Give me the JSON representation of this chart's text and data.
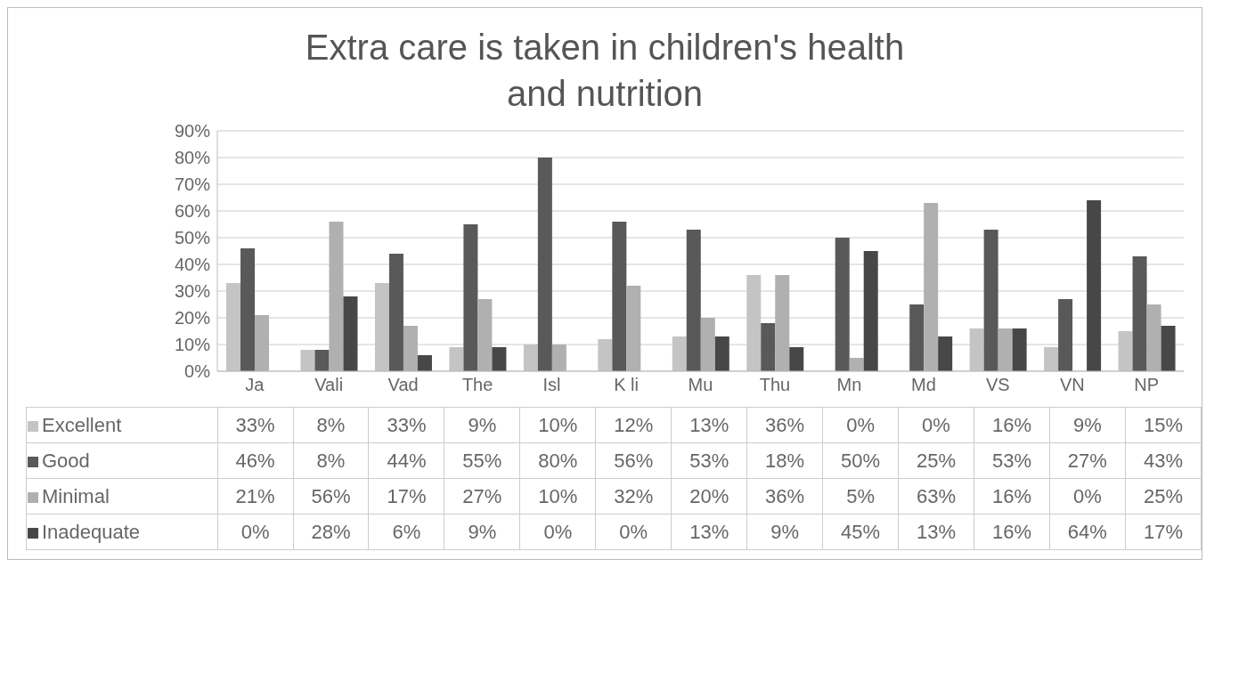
{
  "chart_data": {
    "type": "bar",
    "title": "Extra care is taken in children's health and nutrition",
    "categories": [
      "Ja",
      "Vali",
      "Vad",
      "The",
      "Isl",
      "K li",
      "Mu",
      "Thu",
      "Mn",
      "Md",
      "VS",
      "VN",
      "NP"
    ],
    "series": [
      {
        "name": "Excellent",
        "color": "#c4c4c4",
        "values": [
          33,
          8,
          33,
          9,
          10,
          12,
          13,
          36,
          0,
          0,
          16,
          9,
          15
        ],
        "value_labels": [
          "33%",
          "8%",
          "33%",
          "9%",
          "10%",
          "12%",
          "13%",
          "36%",
          "0%",
          "0%",
          "16%",
          "9%",
          "15%"
        ]
      },
      {
        "name": "Good",
        "color": "#595959",
        "values": [
          46,
          8,
          44,
          55,
          80,
          56,
          53,
          18,
          50,
          25,
          53,
          27,
          43
        ],
        "value_labels": [
          "46%",
          "8%",
          "44%",
          "55%",
          "80%",
          "56%",
          "53%",
          "18%",
          "50%",
          "25%",
          "53%",
          "27%",
          "43%"
        ]
      },
      {
        "name": "Minimal",
        "color": "#b0b0b0",
        "values": [
          21,
          56,
          17,
          27,
          10,
          32,
          20,
          36,
          5,
          63,
          16,
          0,
          25
        ],
        "value_labels": [
          "21%",
          "56%",
          "17%",
          "27%",
          "10%",
          "32%",
          "20%",
          "36%",
          "5%",
          "63%",
          "16%",
          "0%",
          "25%"
        ]
      },
      {
        "name": "Inadequate",
        "color": "#474747",
        "values": [
          0,
          28,
          6,
          9,
          0,
          0,
          13,
          9,
          45,
          13,
          16,
          64,
          17
        ],
        "value_labels": [
          "0%",
          "28%",
          "6%",
          "9%",
          "0%",
          "0%",
          "13%",
          "9%",
          "45%",
          "13%",
          "16%",
          "64%",
          "17%"
        ]
      }
    ],
    "ylim": [
      0,
      90
    ],
    "yticks": [
      {
        "value": 0,
        "label": "0%"
      },
      {
        "value": 10,
        "label": "10%"
      },
      {
        "value": 20,
        "label": "20%"
      },
      {
        "value": 30,
        "label": "30%"
      },
      {
        "value": 40,
        "label": "40%"
      },
      {
        "value": 50,
        "label": "50%"
      },
      {
        "value": 60,
        "label": "60%"
      },
      {
        "value": 70,
        "label": "70%"
      },
      {
        "value": 80,
        "label": "80%"
      },
      {
        "value": 90,
        "label": "90%"
      }
    ],
    "grid": "y",
    "legend": "bottom"
  }
}
